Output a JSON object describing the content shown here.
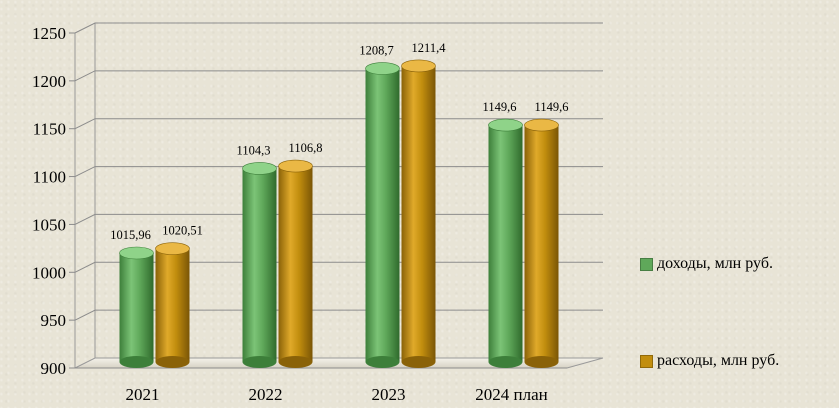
{
  "chart_data": {
    "type": "bar",
    "categories": [
      "2021",
      "2022",
      "2023",
      "2024 план"
    ],
    "series": [
      {
        "name": "доходы, млн руб.",
        "color": "#5fa85a",
        "values": [
          1015.96,
          1104.3,
          1208.7,
          1149.6
        ],
        "labels": [
          "1015,96",
          "1104,3",
          "1208,7",
          "1149,6"
        ]
      },
      {
        "name": "расходы,  млн руб.",
        "color": "#c28e0e",
        "values": [
          1020.51,
          1106.8,
          1211.4,
          1149.6
        ],
        "labels": [
          "1020,51",
          "1106,8",
          "1211,4",
          "1149,6"
        ]
      }
    ],
    "yticks": [
      "900",
      "950",
      "1000",
      "1050",
      "1100",
      "1150",
      "1200",
      "1250"
    ],
    "ylim": [
      900,
      1250
    ],
    "grid": true,
    "legend_position": "right"
  }
}
